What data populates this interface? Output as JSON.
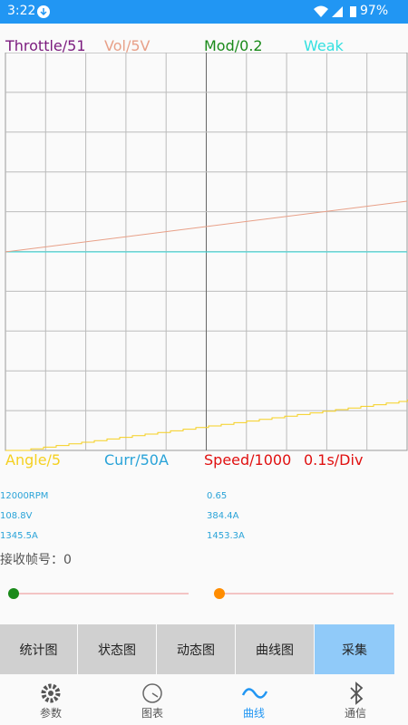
{
  "status_bar": {
    "time": "3:22",
    "battery": "97%"
  },
  "chart": {
    "top_legend": [
      "Throttle/51",
      "Vol/5V",
      "Mod/0.2",
      "Weak"
    ],
    "bottom_legend": [
      "Angle/5",
      "Curr/50A",
      "Speed/1000",
      "0.1s/Div"
    ]
  },
  "readouts": [
    [
      "12000RPM",
      "0.65"
    ],
    [
      "108.8V",
      "384.4A"
    ],
    [
      "1345.5A",
      "1453.3A"
    ]
  ],
  "frame_counter": "接收帧号：0",
  "buttons": [
    "统计图",
    "状态图",
    "动态图",
    "曲线图",
    "采集"
  ],
  "nav": [
    "参数",
    "图表",
    "曲线",
    "通信"
  ]
}
